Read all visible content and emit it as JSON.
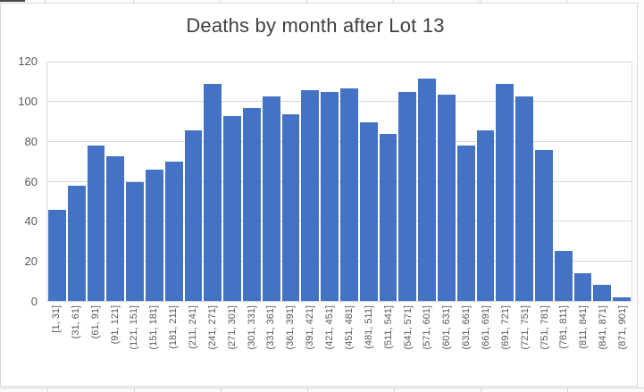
{
  "context": "excel-embedded-chart",
  "chart": {
    "title": "Deaths by month after Lot 13"
  },
  "colors": {
    "bar": "#4472C4",
    "gridline": "#D9D9D9",
    "chart_border": "#D9D9D9",
    "title_text": "#404040",
    "tick_text": "#595959",
    "background": "#FFFFFF"
  },
  "y_axis": {
    "tick_labels": [
      "120",
      "100",
      "80",
      "60",
      "40",
      "20",
      "0"
    ]
  },
  "chart_data": {
    "type": "bar",
    "title": "Deaths by month after Lot 13",
    "xlabel": "",
    "ylabel": "",
    "categories": [
      "[1, 31]",
      "(31, 61]",
      "(61, 91]",
      "(91, 121]",
      "(121, 151]",
      "(151, 181]",
      "(181, 211]",
      "(211, 241]",
      "(241, 271]",
      "(271, 301]",
      "(301, 331]",
      "(331, 361]",
      "(361, 391]",
      "(391, 421]",
      "(421, 451]",
      "(451, 481]",
      "(481, 511]",
      "(511, 541]",
      "(541, 571]",
      "(571, 601]",
      "(601, 631]",
      "(631, 661]",
      "(661, 691]",
      "(691, 721]",
      "(721, 751]",
      "(751, 781]",
      "(781, 811]",
      "(811, 841]",
      "(841, 871]",
      "(871, 901]"
    ],
    "values": [
      46,
      58,
      78,
      73,
      60,
      66,
      70,
      86,
      109,
      93,
      97,
      103,
      94,
      106,
      105,
      107,
      90,
      84,
      105,
      112,
      104,
      78,
      86,
      109,
      103,
      76,
      25,
      14,
      8,
      2
    ],
    "ylim": [
      0,
      120
    ],
    "yticks": [
      0,
      20,
      40,
      60,
      80,
      100,
      120
    ],
    "grid": true,
    "legend": false,
    "bar_color": "#4472C4"
  }
}
